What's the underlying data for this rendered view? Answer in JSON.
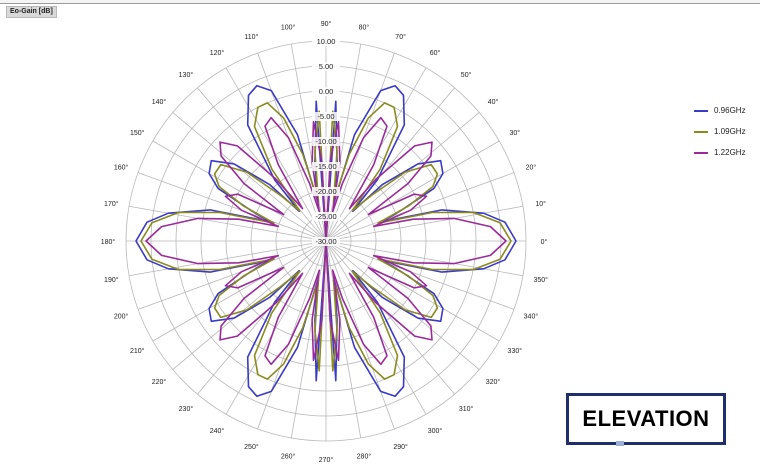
{
  "header": {
    "panel_title": "Eo-Gain [dB]"
  },
  "badge": {
    "label": "ELEVATION"
  },
  "colors": {
    "grid": "#b8b8b8",
    "text": "#222222"
  },
  "chart_data": {
    "type": "polar-line",
    "title": "Eo-Gain [dB]",
    "r_axis": {
      "min": -30,
      "max": 10,
      "step": 5,
      "tick_labels": [
        "-30.00",
        "-25.00",
        "-20.00",
        "-15.00",
        "-10.00",
        "-5.00",
        "0.00",
        "5.00",
        "10.00"
      ]
    },
    "angle_axis": {
      "step_deg": 10,
      "direction": "counterclockwise",
      "zero": "right"
    },
    "grid": true,
    "legend_position": "right",
    "series": [
      {
        "name": "0.96GHz",
        "color": "#3a3ac8",
        "points": [
          [
            0,
            8
          ],
          [
            6,
            6
          ],
          [
            10,
            2
          ],
          [
            15,
            -6
          ],
          [
            19,
            -18
          ],
          [
            22,
            -14
          ],
          [
            26,
            -6
          ],
          [
            30,
            -3
          ],
          [
            35,
            -2
          ],
          [
            40,
            -6
          ],
          [
            45,
            -14
          ],
          [
            48,
            -22
          ],
          [
            50,
            -14
          ],
          [
            56,
            -2
          ],
          [
            62,
            3
          ],
          [
            66,
            4
          ],
          [
            70,
            2
          ],
          [
            75,
            -8
          ],
          [
            78,
            -22
          ],
          [
            82,
            -14
          ],
          [
            86,
            -2
          ],
          [
            90,
            -30
          ],
          [
            94,
            -2
          ],
          [
            98,
            -14
          ],
          [
            102,
            -22
          ],
          [
            105,
            -8
          ],
          [
            110,
            2
          ],
          [
            114,
            4
          ],
          [
            118,
            3
          ],
          [
            124,
            -2
          ],
          [
            130,
            -14
          ],
          [
            132,
            -22
          ],
          [
            135,
            -14
          ],
          [
            140,
            -6
          ],
          [
            145,
            -2
          ],
          [
            150,
            -3
          ],
          [
            154,
            -6
          ],
          [
            158,
            -14
          ],
          [
            161,
            -18
          ],
          [
            165,
            -6
          ],
          [
            170,
            2
          ],
          [
            174,
            6
          ],
          [
            180,
            8
          ],
          [
            186,
            6
          ],
          [
            190,
            2
          ],
          [
            195,
            -6
          ],
          [
            199,
            -18
          ],
          [
            202,
            -14
          ],
          [
            206,
            -6
          ],
          [
            210,
            -3
          ],
          [
            215,
            -2
          ],
          [
            220,
            -6
          ],
          [
            225,
            -14
          ],
          [
            228,
            -22
          ],
          [
            230,
            -14
          ],
          [
            236,
            -2
          ],
          [
            242,
            3
          ],
          [
            246,
            4
          ],
          [
            250,
            2
          ],
          [
            255,
            -8
          ],
          [
            258,
            -22
          ],
          [
            262,
            -14
          ],
          [
            266,
            -2
          ],
          [
            270,
            -30
          ],
          [
            274,
            -2
          ],
          [
            278,
            -14
          ],
          [
            282,
            -22
          ],
          [
            285,
            -8
          ],
          [
            290,
            2
          ],
          [
            294,
            4
          ],
          [
            298,
            3
          ],
          [
            304,
            -2
          ],
          [
            310,
            -14
          ],
          [
            312,
            -22
          ],
          [
            315,
            -14
          ],
          [
            320,
            -6
          ],
          [
            325,
            -2
          ],
          [
            330,
            -3
          ],
          [
            334,
            -6
          ],
          [
            338,
            -14
          ],
          [
            341,
            -18
          ],
          [
            345,
            -6
          ],
          [
            350,
            2
          ],
          [
            354,
            6
          ],
          [
            360,
            8
          ]
        ]
      },
      {
        "name": "1.09GHz",
        "color": "#8a8a1e",
        "points": [
          [
            0,
            7
          ],
          [
            6,
            5
          ],
          [
            11,
            0
          ],
          [
            15,
            -8
          ],
          [
            19,
            -19
          ],
          [
            23,
            -12
          ],
          [
            27,
            -6
          ],
          [
            31,
            -4
          ],
          [
            36,
            -4
          ],
          [
            41,
            -9
          ],
          [
            45,
            -17
          ],
          [
            49,
            -22
          ],
          [
            53,
            -12
          ],
          [
            58,
            -3
          ],
          [
            63,
            0
          ],
          [
            67,
            0
          ],
          [
            71,
            -4
          ],
          [
            75,
            -12
          ],
          [
            79,
            -22
          ],
          [
            83,
            -12
          ],
          [
            87,
            -4
          ],
          [
            90,
            -30
          ],
          [
            93,
            -4
          ],
          [
            97,
            -12
          ],
          [
            101,
            -22
          ],
          [
            105,
            -12
          ],
          [
            109,
            -4
          ],
          [
            113,
            0
          ],
          [
            117,
            0
          ],
          [
            122,
            -3
          ],
          [
            127,
            -12
          ],
          [
            131,
            -22
          ],
          [
            135,
            -17
          ],
          [
            139,
            -9
          ],
          [
            144,
            -4
          ],
          [
            149,
            -4
          ],
          [
            153,
            -6
          ],
          [
            157,
            -12
          ],
          [
            161,
            -19
          ],
          [
            165,
            -8
          ],
          [
            169,
            0
          ],
          [
            174,
            5
          ],
          [
            180,
            7
          ],
          [
            186,
            5
          ],
          [
            191,
            0
          ],
          [
            195,
            -8
          ],
          [
            199,
            -19
          ],
          [
            203,
            -12
          ],
          [
            207,
            -6
          ],
          [
            211,
            -4
          ],
          [
            216,
            -4
          ],
          [
            221,
            -9
          ],
          [
            225,
            -17
          ],
          [
            229,
            -22
          ],
          [
            233,
            -12
          ],
          [
            238,
            -3
          ],
          [
            243,
            0
          ],
          [
            247,
            0
          ],
          [
            251,
            -4
          ],
          [
            255,
            -12
          ],
          [
            259,
            -22
          ],
          [
            263,
            -12
          ],
          [
            267,
            -4
          ],
          [
            270,
            -30
          ],
          [
            273,
            -4
          ],
          [
            277,
            -12
          ],
          [
            281,
            -22
          ],
          [
            285,
            -12
          ],
          [
            289,
            -4
          ],
          [
            293,
            0
          ],
          [
            297,
            0
          ],
          [
            302,
            -3
          ],
          [
            307,
            -12
          ],
          [
            311,
            -22
          ],
          [
            315,
            -17
          ],
          [
            319,
            -9
          ],
          [
            324,
            -4
          ],
          [
            329,
            -4
          ],
          [
            333,
            -6
          ],
          [
            337,
            -12
          ],
          [
            341,
            -19
          ],
          [
            345,
            -8
          ],
          [
            349,
            0
          ],
          [
            354,
            5
          ],
          [
            360,
            7
          ]
        ]
      },
      {
        "name": "1.22GHz",
        "color": "#9a2a9a",
        "points": [
          [
            0,
            6
          ],
          [
            5,
            3
          ],
          [
            10,
            -4
          ],
          [
            14,
            -12
          ],
          [
            17,
            -20
          ],
          [
            20,
            -12
          ],
          [
            24,
            -8
          ],
          [
            28,
            -10
          ],
          [
            32,
            -20
          ],
          [
            35,
            -10
          ],
          [
            39,
            -3
          ],
          [
            43,
            -1
          ],
          [
            47,
            -4
          ],
          [
            51,
            -14
          ],
          [
            54,
            -22
          ],
          [
            58,
            -12
          ],
          [
            62,
            -4
          ],
          [
            66,
            -3
          ],
          [
            70,
            -8
          ],
          [
            74,
            -18
          ],
          [
            77,
            -24
          ],
          [
            80,
            -14
          ],
          [
            84,
            -6
          ],
          [
            87,
            -14
          ],
          [
            90,
            -30
          ],
          [
            93,
            -14
          ],
          [
            96,
            -6
          ],
          [
            100,
            -14
          ],
          [
            103,
            -24
          ],
          [
            106,
            -18
          ],
          [
            110,
            -8
          ],
          [
            114,
            -3
          ],
          [
            118,
            -4
          ],
          [
            122,
            -12
          ],
          [
            126,
            -22
          ],
          [
            129,
            -14
          ],
          [
            133,
            -4
          ],
          [
            137,
            -1
          ],
          [
            141,
            -3
          ],
          [
            145,
            -10
          ],
          [
            148,
            -20
          ],
          [
            152,
            -10
          ],
          [
            156,
            -8
          ],
          [
            160,
            -12
          ],
          [
            163,
            -20
          ],
          [
            166,
            -12
          ],
          [
            170,
            -4
          ],
          [
            175,
            3
          ],
          [
            180,
            6
          ],
          [
            185,
            3
          ],
          [
            190,
            -4
          ],
          [
            194,
            -12
          ],
          [
            197,
            -20
          ],
          [
            200,
            -12
          ],
          [
            204,
            -8
          ],
          [
            208,
            -10
          ],
          [
            212,
            -20
          ],
          [
            215,
            -10
          ],
          [
            219,
            -3
          ],
          [
            223,
            -1
          ],
          [
            227,
            -4
          ],
          [
            231,
            -14
          ],
          [
            234,
            -22
          ],
          [
            238,
            -12
          ],
          [
            242,
            -4
          ],
          [
            246,
            -3
          ],
          [
            250,
            -8
          ],
          [
            254,
            -18
          ],
          [
            257,
            -24
          ],
          [
            260,
            -14
          ],
          [
            264,
            -6
          ],
          [
            267,
            -14
          ],
          [
            270,
            -30
          ],
          [
            273,
            -14
          ],
          [
            276,
            -6
          ],
          [
            280,
            -14
          ],
          [
            283,
            -24
          ],
          [
            286,
            -18
          ],
          [
            290,
            -8
          ],
          [
            294,
            -3
          ],
          [
            298,
            -4
          ],
          [
            302,
            -12
          ],
          [
            306,
            -22
          ],
          [
            309,
            -14
          ],
          [
            313,
            -4
          ],
          [
            317,
            -1
          ],
          [
            321,
            -3
          ],
          [
            325,
            -10
          ],
          [
            328,
            -20
          ],
          [
            332,
            -10
          ],
          [
            336,
            -8
          ],
          [
            340,
            -12
          ],
          [
            343,
            -20
          ],
          [
            346,
            -12
          ],
          [
            350,
            -4
          ],
          [
            355,
            3
          ],
          [
            360,
            6
          ]
        ]
      }
    ]
  }
}
